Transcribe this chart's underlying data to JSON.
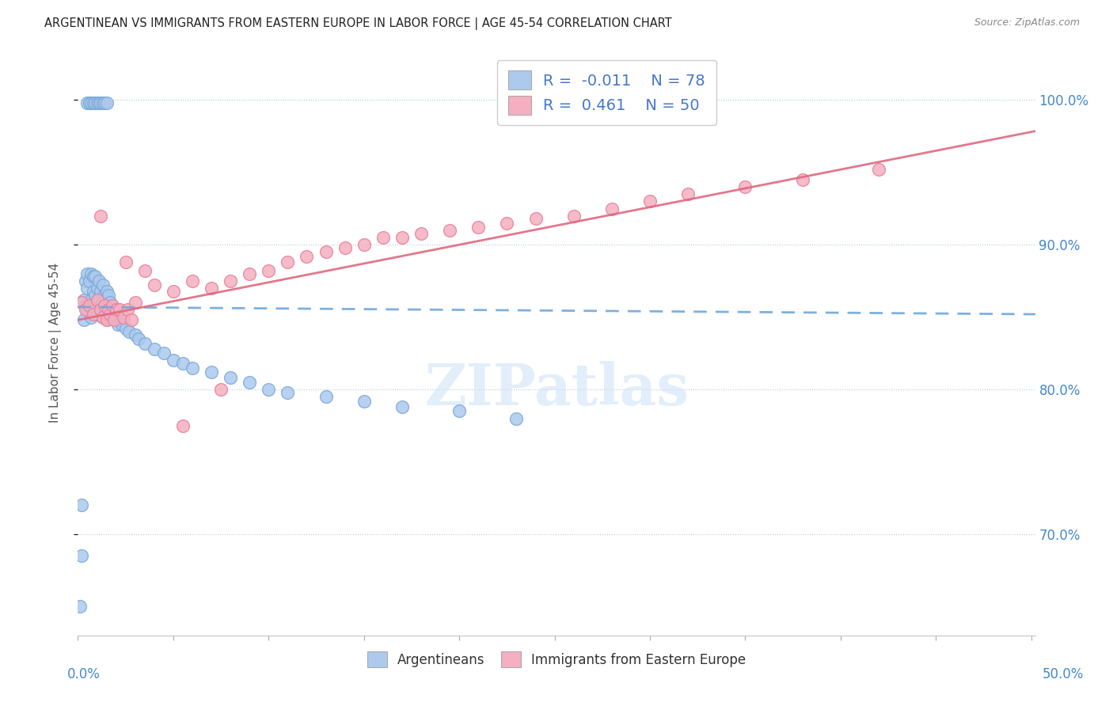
{
  "title": "ARGENTINEAN VS IMMIGRANTS FROM EASTERN EUROPE IN LABOR FORCE | AGE 45-54 CORRELATION CHART",
  "source": "Source: ZipAtlas.com",
  "ylabel": "In Labor Force | Age 45-54",
  "xmin": 0.0,
  "xmax": 0.5,
  "ymin": 0.63,
  "ymax": 1.035,
  "blue_R": -0.011,
  "blue_N": 78,
  "pink_R": 0.461,
  "pink_N": 50,
  "blue_color": "#adc9ee",
  "pink_color": "#f4afc0",
  "blue_edge": "#7aaad8",
  "pink_edge": "#e8809a",
  "trend_blue_color": "#6fa8dc",
  "trend_pink_color": "#e06880",
  "watermark_color": "#d0e4f5",
  "blue_points_x": [
    0.001,
    0.002,
    0.002,
    0.003,
    0.003,
    0.004,
    0.004,
    0.005,
    0.005,
    0.005,
    0.006,
    0.006,
    0.007,
    0.007,
    0.007,
    0.008,
    0.008,
    0.008,
    0.009,
    0.009,
    0.009,
    0.01,
    0.01,
    0.01,
    0.011,
    0.011,
    0.011,
    0.012,
    0.012,
    0.013,
    0.013,
    0.013,
    0.014,
    0.014,
    0.015,
    0.015,
    0.015,
    0.016,
    0.016,
    0.017,
    0.017,
    0.018,
    0.019,
    0.02,
    0.021,
    0.022,
    0.023,
    0.025,
    0.027,
    0.03,
    0.032,
    0.035,
    0.04,
    0.045,
    0.05,
    0.055,
    0.06,
    0.07,
    0.08,
    0.09,
    0.1,
    0.11,
    0.13,
    0.15,
    0.17,
    0.2,
    0.23,
    0.005,
    0.006,
    0.007,
    0.008,
    0.009,
    0.01,
    0.011,
    0.012,
    0.013,
    0.014,
    0.015
  ],
  "blue_points_y": [
    0.65,
    0.685,
    0.72,
    0.848,
    0.862,
    0.858,
    0.875,
    0.855,
    0.87,
    0.88,
    0.858,
    0.875,
    0.85,
    0.862,
    0.88,
    0.855,
    0.868,
    0.878,
    0.858,
    0.865,
    0.878,
    0.852,
    0.86,
    0.87,
    0.855,
    0.862,
    0.875,
    0.858,
    0.868,
    0.85,
    0.86,
    0.872,
    0.855,
    0.865,
    0.848,
    0.858,
    0.868,
    0.852,
    0.865,
    0.85,
    0.86,
    0.855,
    0.85,
    0.848,
    0.845,
    0.848,
    0.845,
    0.842,
    0.84,
    0.838,
    0.835,
    0.832,
    0.828,
    0.825,
    0.82,
    0.818,
    0.815,
    0.812,
    0.808,
    0.805,
    0.8,
    0.798,
    0.795,
    0.792,
    0.788,
    0.785,
    0.78,
    0.998,
    0.998,
    0.998,
    0.998,
    0.998,
    0.998,
    0.998,
    0.998,
    0.998,
    0.998,
    0.998
  ],
  "pink_points_x": [
    0.002,
    0.004,
    0.006,
    0.008,
    0.01,
    0.012,
    0.013,
    0.014,
    0.015,
    0.016,
    0.017,
    0.018,
    0.019,
    0.02,
    0.022,
    0.024,
    0.026,
    0.028,
    0.03,
    0.035,
    0.04,
    0.05,
    0.06,
    0.07,
    0.08,
    0.09,
    0.1,
    0.11,
    0.12,
    0.13,
    0.14,
    0.15,
    0.16,
    0.17,
    0.18,
    0.195,
    0.21,
    0.225,
    0.24,
    0.26,
    0.28,
    0.3,
    0.32,
    0.35,
    0.38,
    0.42,
    0.012,
    0.025,
    0.055,
    0.075
  ],
  "pink_points_y": [
    0.86,
    0.855,
    0.858,
    0.852,
    0.862,
    0.855,
    0.85,
    0.858,
    0.848,
    0.855,
    0.852,
    0.858,
    0.848,
    0.855,
    0.855,
    0.85,
    0.855,
    0.848,
    0.86,
    0.882,
    0.872,
    0.868,
    0.875,
    0.87,
    0.875,
    0.88,
    0.882,
    0.888,
    0.892,
    0.895,
    0.898,
    0.9,
    0.905,
    0.905,
    0.908,
    0.91,
    0.912,
    0.915,
    0.918,
    0.92,
    0.925,
    0.93,
    0.935,
    0.94,
    0.945,
    0.952,
    0.92,
    0.888,
    0.775,
    0.8
  ],
  "yticks": [
    0.7,
    0.8,
    0.9,
    1.0
  ],
  "ytick_labels": [
    "70.0%",
    "80.0%",
    "90.0%",
    "100.0%"
  ],
  "xticks": [
    0.0,
    0.05,
    0.1,
    0.15,
    0.2,
    0.25,
    0.3,
    0.35,
    0.4,
    0.45,
    0.5
  ]
}
